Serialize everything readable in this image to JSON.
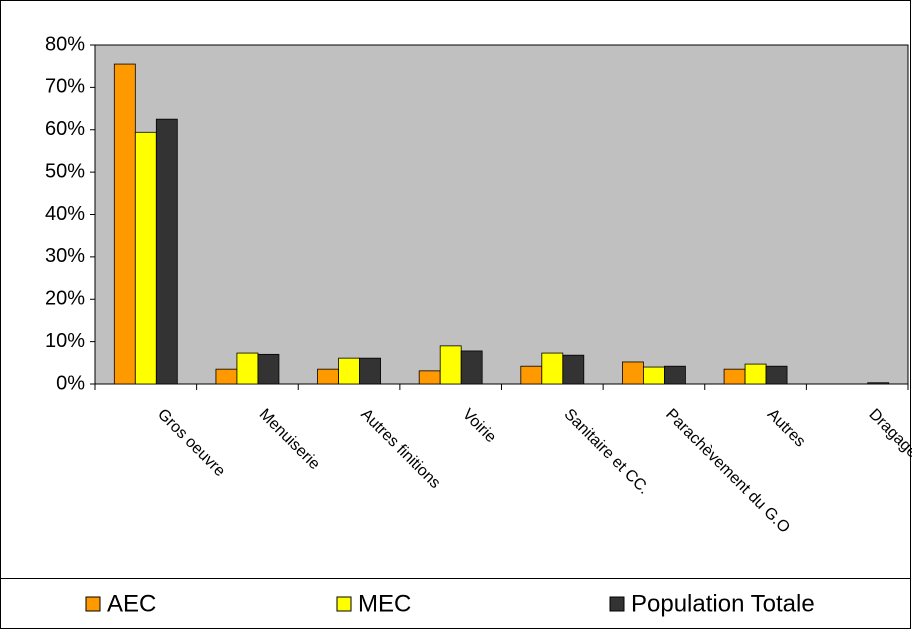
{
  "chart_data": {
    "type": "bar",
    "categories": [
      "Gros oeuvre",
      "Menuiserie",
      "Autres finitions",
      "Voirie",
      "Sanitaire et CC.",
      "Parachèvement du G.O",
      "Autres",
      "Dragage"
    ],
    "series": [
      {
        "name": "AEC",
        "color": "#ff9900",
        "values": [
          75.5,
          3.5,
          3.5,
          3.1,
          4.2,
          5.2,
          3.5,
          0
        ]
      },
      {
        "name": "MEC",
        "color": "#ffff00",
        "values": [
          59.4,
          7.3,
          6.1,
          9,
          7.3,
          4,
          4.7,
          0
        ]
      },
      {
        "name": "Population Totale",
        "color": "#333333",
        "values": [
          62.5,
          7,
          6.1,
          7.8,
          6.8,
          4.2,
          4.2,
          0.3
        ]
      }
    ],
    "ylim": [
      0,
      80
    ],
    "yticks": [
      {
        "value": 0,
        "label": "0%"
      },
      {
        "value": 10,
        "label": "10%"
      },
      {
        "value": 20,
        "label": "20%"
      },
      {
        "value": 30,
        "label": "30%"
      },
      {
        "value": 40,
        "label": "40%"
      },
      {
        "value": 50,
        "label": "50%"
      },
      {
        "value": 60,
        "label": "60%"
      },
      {
        "value": 70,
        "label": "70%"
      },
      {
        "value": 80,
        "label": "80%"
      }
    ],
    "plot_background": "#c0c0c0",
    "legend": "bottom"
  }
}
